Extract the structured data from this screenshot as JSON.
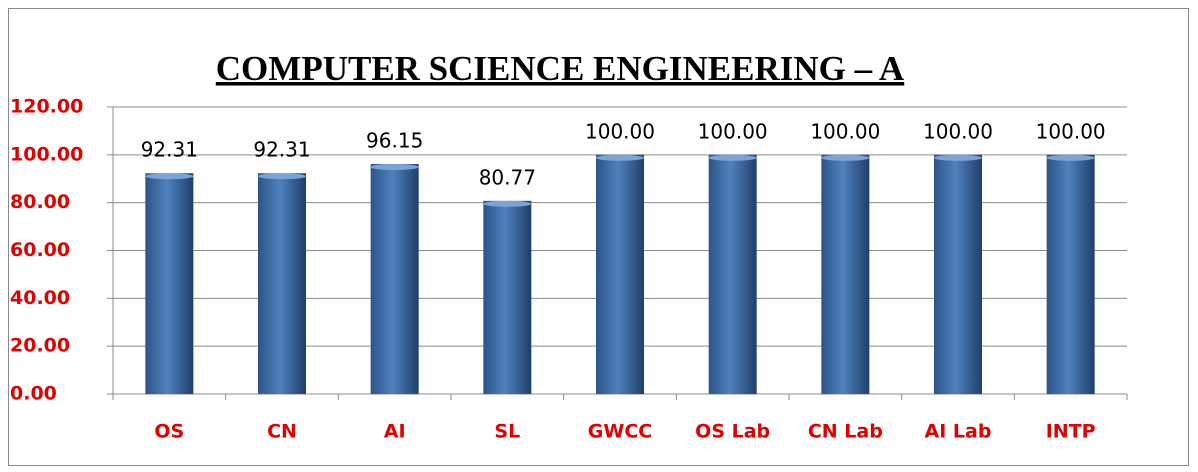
{
  "chart_data": {
    "type": "bar",
    "title": "COMPUTER SCIENCE ENGINEERING – A",
    "categories": [
      "OS",
      "CN",
      "AI",
      "SL",
      "GWCC",
      "OS Lab",
      "CN Lab",
      "AI Lab",
      "INTP"
    ],
    "values": [
      92.31,
      92.31,
      96.15,
      80.77,
      100,
      100,
      100,
      100,
      100
    ],
    "value_labels": [
      "92.31",
      "92.31",
      "96.15",
      "80.77",
      "100.00",
      "100.00",
      "100.00",
      "100.00",
      "100.00"
    ],
    "color": "#4f81bd",
    "ylim": [
      0,
      120
    ],
    "yticks": [
      {
        "value": 0,
        "label": "0.00"
      },
      {
        "value": 20,
        "label": "20.00"
      },
      {
        "value": 40,
        "label": "40.00"
      },
      {
        "value": 60,
        "label": "60.00"
      },
      {
        "value": 80,
        "label": "80.00"
      },
      {
        "value": 100,
        "label": "100.00"
      },
      {
        "value": 120,
        "label": "120.00"
      }
    ],
    "grid": true
  }
}
